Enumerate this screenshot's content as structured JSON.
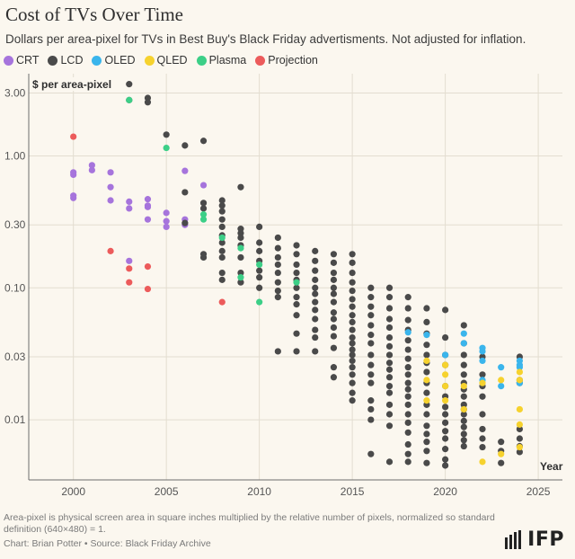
{
  "header": {
    "title": "Cost of TVs Over Time",
    "subtitle": "Dollars per area-pixel for TVs in Best Buy's Black Friday advertisments. Not adjusted for inflation."
  },
  "footer": {
    "note": "Area-pixel is physical screen area in square inches multiplied by the relative number of pixels, normalized so standard definition (640×480) = 1.",
    "credit": "Chart: Brian Potter • Source: Black Friday Archive",
    "logo": "IFP"
  },
  "colors": {
    "CRT": "#a674dc",
    "LCD": "#4a4a4a",
    "OLED": "#3ab5ec",
    "QLED": "#f6d22e",
    "Plasma": "#3ccf87",
    "Projection": "#ec5b5b",
    "grid": "#e3ddd0",
    "background": "#fbf7ef"
  },
  "chart_data": {
    "type": "scatter",
    "title": "Cost of TVs Over Time",
    "subtitle": "Dollars per area-pixel for TVs in Best Buy's Black Friday advertisments. Not adjusted for inflation.",
    "xlabel": "Year",
    "ylabel": "$ per area-pixel",
    "x_ticks": [
      "2000",
      "2005",
      "2010",
      "2015",
      "2020",
      "2025"
    ],
    "y_ticks": [
      "3.00",
      "1.00",
      "0.30",
      "0.10",
      "0.03",
      "0.01"
    ],
    "y_tick_values": [
      3,
      1,
      0.3,
      0.1,
      0.03,
      0.01
    ],
    "xlim": [
      1997.6,
      2026.3
    ],
    "ylim": [
      0.0035,
      4.2
    ],
    "y_scale": "log",
    "grid": true,
    "legend_position": "top-left",
    "series": [
      {
        "name": "CRT",
        "points": [
          [
            2000,
            0.75
          ],
          [
            2000,
            0.72
          ],
          [
            2000,
            0.5
          ],
          [
            2000,
            0.48
          ],
          [
            2001,
            0.85
          ],
          [
            2001,
            0.78
          ],
          [
            2002,
            0.75
          ],
          [
            2002,
            0.58
          ],
          [
            2002,
            0.46
          ],
          [
            2003,
            0.45
          ],
          [
            2003,
            0.4
          ],
          [
            2003,
            0.16
          ],
          [
            2004,
            0.47
          ],
          [
            2004,
            0.42
          ],
          [
            2004,
            0.41
          ],
          [
            2004,
            0.33
          ],
          [
            2005,
            0.37
          ],
          [
            2005,
            0.32
          ],
          [
            2005,
            0.29
          ],
          [
            2006,
            0.77
          ],
          [
            2006,
            0.33
          ],
          [
            2006,
            0.3
          ],
          [
            2007,
            0.6
          ]
        ]
      },
      {
        "name": "LCD",
        "points": [
          [
            2003,
            3.5
          ],
          [
            2003,
            2.65
          ],
          [
            2004,
            2.75
          ],
          [
            2004,
            2.55
          ],
          [
            2005,
            1.45
          ],
          [
            2006,
            1.2
          ],
          [
            2006,
            0.53
          ],
          [
            2006,
            0.31
          ],
          [
            2007,
            1.3
          ],
          [
            2007,
            0.44
          ],
          [
            2007,
            0.4
          ],
          [
            2007,
            0.18
          ],
          [
            2007,
            0.17
          ],
          [
            2008,
            0.46
          ],
          [
            2008,
            0.42
          ],
          [
            2008,
            0.38
          ],
          [
            2008,
            0.33
          ],
          [
            2008,
            0.29
          ],
          [
            2008,
            0.25
          ],
          [
            2008,
            0.22
          ],
          [
            2008,
            0.19
          ],
          [
            2008,
            0.17
          ],
          [
            2008,
            0.13
          ],
          [
            2008,
            0.115
          ],
          [
            2009,
            0.58
          ],
          [
            2009,
            0.28
          ],
          [
            2009,
            0.26
          ],
          [
            2009,
            0.24
          ],
          [
            2009,
            0.21
          ],
          [
            2009,
            0.17
          ],
          [
            2009,
            0.13
          ],
          [
            2009,
            0.11
          ],
          [
            2010,
            0.29
          ],
          [
            2010,
            0.22
          ],
          [
            2010,
            0.19
          ],
          [
            2010,
            0.16
          ],
          [
            2010,
            0.135
          ],
          [
            2010,
            0.12
          ],
          [
            2010,
            0.1
          ],
          [
            2011,
            0.24
          ],
          [
            2011,
            0.2
          ],
          [
            2011,
            0.17
          ],
          [
            2011,
            0.15
          ],
          [
            2011,
            0.13
          ],
          [
            2011,
            0.11
          ],
          [
            2011,
            0.095
          ],
          [
            2011,
            0.085
          ],
          [
            2011,
            0.033
          ],
          [
            2012,
            0.21
          ],
          [
            2012,
            0.18
          ],
          [
            2012,
            0.15
          ],
          [
            2012,
            0.13
          ],
          [
            2012,
            0.115
          ],
          [
            2012,
            0.1
          ],
          [
            2012,
            0.085
          ],
          [
            2012,
            0.075
          ],
          [
            2012,
            0.062
          ],
          [
            2012,
            0.045
          ],
          [
            2012,
            0.033
          ],
          [
            2013,
            0.19
          ],
          [
            2013,
            0.16
          ],
          [
            2013,
            0.135
          ],
          [
            2013,
            0.115
          ],
          [
            2013,
            0.1
          ],
          [
            2013,
            0.09
          ],
          [
            2013,
            0.078
          ],
          [
            2013,
            0.068
          ],
          [
            2013,
            0.058
          ],
          [
            2013,
            0.048
          ],
          [
            2013,
            0.042
          ],
          [
            2013,
            0.033
          ],
          [
            2014,
            0.18
          ],
          [
            2014,
            0.155
          ],
          [
            2014,
            0.13
          ],
          [
            2014,
            0.115
          ],
          [
            2014,
            0.1
          ],
          [
            2014,
            0.09
          ],
          [
            2014,
            0.078
          ],
          [
            2014,
            0.065
          ],
          [
            2014,
            0.058
          ],
          [
            2014,
            0.05
          ],
          [
            2014,
            0.043
          ],
          [
            2014,
            0.035
          ],
          [
            2014,
            0.025
          ],
          [
            2014,
            0.021
          ],
          [
            2015,
            0.18
          ],
          [
            2015,
            0.155
          ],
          [
            2015,
            0.13
          ],
          [
            2015,
            0.11
          ],
          [
            2015,
            0.095
          ],
          [
            2015,
            0.082
          ],
          [
            2015,
            0.072
          ],
          [
            2015,
            0.062
          ],
          [
            2015,
            0.055
          ],
          [
            2015,
            0.048
          ],
          [
            2015,
            0.042
          ],
          [
            2015,
            0.038
          ],
          [
            2015,
            0.034
          ],
          [
            2015,
            0.031
          ],
          [
            2015,
            0.028
          ],
          [
            2015,
            0.025
          ],
          [
            2015,
            0.022
          ],
          [
            2015,
            0.019
          ],
          [
            2015,
            0.016
          ],
          [
            2015,
            0.014
          ],
          [
            2016,
            0.1
          ],
          [
            2016,
            0.085
          ],
          [
            2016,
            0.072
          ],
          [
            2016,
            0.062
          ],
          [
            2016,
            0.052
          ],
          [
            2016,
            0.044
          ],
          [
            2016,
            0.038
          ],
          [
            2016,
            0.031
          ],
          [
            2016,
            0.026
          ],
          [
            2016,
            0.022
          ],
          [
            2016,
            0.019
          ],
          [
            2016,
            0.014
          ],
          [
            2016,
            0.012
          ],
          [
            2016,
            0.01
          ],
          [
            2016,
            0.0055
          ],
          [
            2017,
            0.1
          ],
          [
            2017,
            0.085
          ],
          [
            2017,
            0.07
          ],
          [
            2017,
            0.058
          ],
          [
            2017,
            0.05
          ],
          [
            2017,
            0.042
          ],
          [
            2017,
            0.036
          ],
          [
            2017,
            0.031
          ],
          [
            2017,
            0.027
          ],
          [
            2017,
            0.024
          ],
          [
            2017,
            0.021
          ],
          [
            2017,
            0.018
          ],
          [
            2017,
            0.016
          ],
          [
            2017,
            0.013
          ],
          [
            2017,
            0.011
          ],
          [
            2017,
            0.009
          ],
          [
            2017,
            0.0048
          ],
          [
            2018,
            0.085
          ],
          [
            2018,
            0.07
          ],
          [
            2018,
            0.057
          ],
          [
            2018,
            0.048
          ],
          [
            2018,
            0.04
          ],
          [
            2018,
            0.034
          ],
          [
            2018,
            0.029
          ],
          [
            2018,
            0.025
          ],
          [
            2018,
            0.022
          ],
          [
            2018,
            0.019
          ],
          [
            2018,
            0.017
          ],
          [
            2018,
            0.015
          ],
          [
            2018,
            0.013
          ],
          [
            2018,
            0.011
          ],
          [
            2018,
            0.0095
          ],
          [
            2018,
            0.008
          ],
          [
            2018,
            0.0065
          ],
          [
            2018,
            0.0055
          ],
          [
            2018,
            0.0048
          ],
          [
            2019,
            0.07
          ],
          [
            2019,
            0.055
          ],
          [
            2019,
            0.045
          ],
          [
            2019,
            0.037
          ],
          [
            2019,
            0.031
          ],
          [
            2019,
            0.027
          ],
          [
            2019,
            0.023
          ],
          [
            2019,
            0.019
          ],
          [
            2019,
            0.016
          ],
          [
            2019,
            0.013
          ],
          [
            2019,
            0.011
          ],
          [
            2019,
            0.009
          ],
          [
            2019,
            0.0078
          ],
          [
            2019,
            0.0068
          ],
          [
            2019,
            0.0058
          ],
          [
            2019,
            0.0047
          ],
          [
            2020,
            0.068
          ],
          [
            2020,
            0.042
          ],
          [
            2020,
            0.031
          ],
          [
            2020,
            0.026
          ],
          [
            2020,
            0.018
          ],
          [
            2020,
            0.015
          ],
          [
            2020,
            0.0125
          ],
          [
            2020,
            0.011
          ],
          [
            2020,
            0.0095
          ],
          [
            2020,
            0.0082
          ],
          [
            2020,
            0.0072
          ],
          [
            2020,
            0.006
          ],
          [
            2020,
            0.005
          ],
          [
            2020,
            0.0045
          ],
          [
            2021,
            0.052
          ],
          [
            2021,
            0.038
          ],
          [
            2021,
            0.031
          ],
          [
            2021,
            0.026
          ],
          [
            2021,
            0.022
          ],
          [
            2021,
            0.019
          ],
          [
            2021,
            0.017
          ],
          [
            2021,
            0.015
          ],
          [
            2021,
            0.013
          ],
          [
            2021,
            0.012
          ],
          [
            2021,
            0.011
          ],
          [
            2021,
            0.0098
          ],
          [
            2021,
            0.0088
          ],
          [
            2021,
            0.0078
          ],
          [
            2021,
            0.007
          ],
          [
            2021,
            0.0063
          ],
          [
            2022,
            0.03
          ],
          [
            2022,
            0.022
          ],
          [
            2022,
            0.018
          ],
          [
            2022,
            0.015
          ],
          [
            2022,
            0.011
          ],
          [
            2022,
            0.0085
          ],
          [
            2022,
            0.0072
          ],
          [
            2022,
            0.0062
          ],
          [
            2023,
            0.0068
          ],
          [
            2023,
            0.0058
          ],
          [
            2023,
            0.0047
          ],
          [
            2024,
            0.03
          ],
          [
            2024,
            0.02
          ],
          [
            2024,
            0.019
          ],
          [
            2024,
            0.0085
          ],
          [
            2024,
            0.0072
          ],
          [
            2024,
            0.0063
          ],
          [
            2024,
            0.0057
          ]
        ]
      },
      {
        "name": "OLED",
        "points": [
          [
            2018,
            0.046
          ],
          [
            2019,
            0.044
          ],
          [
            2020,
            0.031
          ],
          [
            2021,
            0.045
          ],
          [
            2021,
            0.038
          ],
          [
            2022,
            0.035
          ],
          [
            2022,
            0.033
          ],
          [
            2022,
            0.028
          ],
          [
            2022,
            0.02
          ],
          [
            2023,
            0.025
          ],
          [
            2023,
            0.018
          ],
          [
            2024,
            0.028
          ],
          [
            2024,
            0.026
          ],
          [
            2024,
            0.025
          ],
          [
            2024,
            0.019
          ]
        ]
      },
      {
        "name": "QLED",
        "points": [
          [
            2019,
            0.028
          ],
          [
            2019,
            0.02
          ],
          [
            2019,
            0.014
          ],
          [
            2020,
            0.026
          ],
          [
            2020,
            0.022
          ],
          [
            2020,
            0.018
          ],
          [
            2020,
            0.014
          ],
          [
            2021,
            0.018
          ],
          [
            2021,
            0.012
          ],
          [
            2022,
            0.019
          ],
          [
            2022,
            0.0048
          ],
          [
            2023,
            0.02
          ],
          [
            2023,
            0.0055
          ],
          [
            2024,
            0.023
          ],
          [
            2024,
            0.02
          ],
          [
            2024,
            0.012
          ],
          [
            2024,
            0.0092
          ],
          [
            2024,
            0.0062
          ]
        ]
      },
      {
        "name": "Plasma",
        "points": [
          [
            2003,
            2.65
          ],
          [
            2005,
            1.15
          ],
          [
            2007,
            0.36
          ],
          [
            2007,
            0.33
          ],
          [
            2008,
            0.24
          ],
          [
            2009,
            0.2
          ],
          [
            2009,
            0.12
          ],
          [
            2010,
            0.15
          ],
          [
            2010,
            0.078
          ],
          [
            2012,
            0.11
          ]
        ]
      },
      {
        "name": "Projection",
        "points": [
          [
            2000,
            1.4
          ],
          [
            2002,
            0.19
          ],
          [
            2003,
            0.14
          ],
          [
            2003,
            0.11
          ],
          [
            2004,
            0.145
          ],
          [
            2004,
            0.098
          ],
          [
            2008,
            0.078
          ]
        ]
      }
    ]
  }
}
